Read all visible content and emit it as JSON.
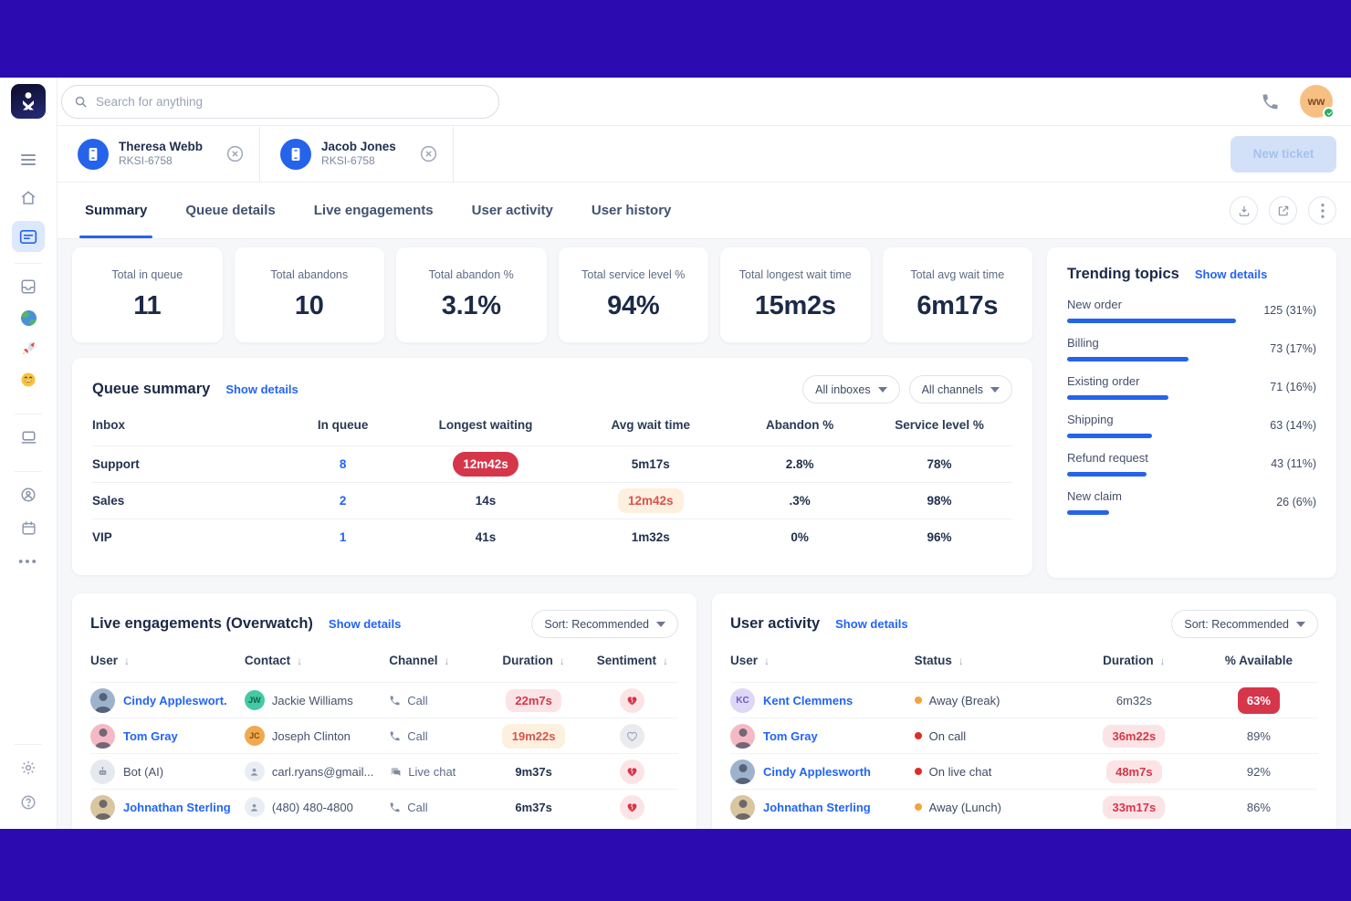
{
  "colors": {
    "frame_blue": "#2c0bb1",
    "accent_blue": "#2563eb",
    "link_blue": "#2264f6",
    "danger_red": "#d6364a",
    "danger_soft_bg": "#fbe4e6",
    "warn_soft_bg": "#fdf0df",
    "status_away_orange": "#f2a33c",
    "status_busy_red": "#e02b2b",
    "online_green": "#27ae60"
  },
  "topbar": {
    "search": {
      "placeholder": "Search for anything"
    },
    "avatar": {
      "initials": "ww",
      "status": "online"
    }
  },
  "ticketbar": {
    "tickets": [
      {
        "name": "Theresa Webb",
        "ref": "RKSI-6758"
      },
      {
        "name": "Jacob Jones",
        "ref": "RKSI-6758"
      }
    ],
    "new_ticket_label": "New ticket"
  },
  "tabs": {
    "items": [
      {
        "label": "Summary",
        "active": true
      },
      {
        "label": "Queue details",
        "active": false
      },
      {
        "label": "Live engagements",
        "active": false
      },
      {
        "label": "User activity",
        "active": false
      },
      {
        "label": "User history",
        "active": false
      }
    ],
    "action_icons": [
      "download",
      "open-external",
      "more"
    ]
  },
  "stats": [
    {
      "label": "Total in queue",
      "value": "11"
    },
    {
      "label": "Total abandons",
      "value": "10"
    },
    {
      "label": "Total abandon %",
      "value": "3.1%"
    },
    {
      "label": "Total service level %",
      "value": "94%"
    },
    {
      "label": "Total longest wait time",
      "value": "15m2s"
    },
    {
      "label": "Total avg wait time",
      "value": "6m17s"
    }
  ],
  "trending": {
    "title": "Trending topics",
    "show_details": "Show details",
    "items": [
      {
        "label": "New order",
        "value": "125 (31%)",
        "bar_pct": 100
      },
      {
        "label": "Billing",
        "value": "73 (17%)",
        "bar_pct": 72
      },
      {
        "label": "Existing order",
        "value": "71 (16%)",
        "bar_pct": 60
      },
      {
        "label": "Shipping",
        "value": "63 (14%)",
        "bar_pct": 50
      },
      {
        "label": "Refund request",
        "value": "43 (11%)",
        "bar_pct": 47
      },
      {
        "label": "New claim",
        "value": "26 (6%)",
        "bar_pct": 25
      }
    ]
  },
  "queue": {
    "title": "Queue summary",
    "show_details": "Show details",
    "filters": [
      {
        "label": "All inboxes"
      },
      {
        "label": "All channels"
      }
    ],
    "columns": [
      "Inbox",
      "In queue",
      "Longest waiting",
      "Avg wait time",
      "Abandon %",
      "Service level %"
    ],
    "rows": [
      {
        "inbox": "Support",
        "in_queue": "8",
        "longest": "12m42s",
        "avg": "5m17s",
        "abandon": "2.8%",
        "service": "78%"
      },
      {
        "inbox": "Sales",
        "in_queue": "2",
        "longest": "14s",
        "avg": "12m42s",
        "abandon": ".3%",
        "service": "98%"
      },
      {
        "inbox": "VIP",
        "in_queue": "1",
        "longest": "41s",
        "avg": "1m32s",
        "abandon": "0%",
        "service": "96%"
      }
    ]
  },
  "live": {
    "title": "Live engagements (Overwatch)",
    "show_details": "Show details",
    "sort_label": "Sort: Recommended",
    "columns": [
      "User",
      "Contact",
      "Channel",
      "Duration",
      "Sentiment"
    ],
    "rows": [
      {
        "user": "Cindy Appleswort.",
        "user_avatar_bg": "#9db3cc",
        "contact": "Jackie Williams",
        "contact_avatar": {
          "initials": "JW",
          "bg": "#45c9a5",
          "fg": "#116149"
        },
        "channel": "Call",
        "duration": "22m7s",
        "sentiment": "negative"
      },
      {
        "user": "Tom Gray",
        "user_avatar_bg": "#f3bac6",
        "contact": "Joseph Clinton",
        "contact_avatar": {
          "initials": "JC",
          "bg": "#f2a94e",
          "fg": "#7c4d0e"
        },
        "channel": "Call",
        "duration": "19m22s",
        "sentiment": "neutral"
      },
      {
        "user": "Bot (AI)",
        "user_avatar_bg": "#e5e9ef",
        "contact": "carl.ryans@gmail...",
        "contact_avatar": {
          "icon": "person"
        },
        "channel": "Live chat",
        "duration": "9m37s",
        "sentiment": "negative"
      },
      {
        "user": "Johnathan Sterling",
        "user_avatar_bg": "#d9c6a0",
        "contact": "(480) 480-4800",
        "contact_avatar": {
          "icon": "person"
        },
        "channel": "Call",
        "duration": "6m37s",
        "sentiment": "negative"
      }
    ]
  },
  "activity": {
    "title": "User activity",
    "show_details": "Show details",
    "sort_label": "Sort: Recommended",
    "columns": [
      "User",
      "Status",
      "Duration",
      "% Available"
    ],
    "rows": [
      {
        "user": "Kent Clemmens",
        "avatar": {
          "initials": "KC",
          "bg": "#ded7f5",
          "fg": "#6a5acd"
        },
        "status": "Away (Break)",
        "status_kind": "away",
        "duration": "6m32s",
        "available": "63%"
      },
      {
        "user": "Tom Gray",
        "avatar": {
          "photo_bg": "#f3bac6"
        },
        "status": "On call",
        "status_kind": "busy",
        "duration": "36m22s",
        "available": "89%"
      },
      {
        "user": "Cindy Applesworth",
        "avatar": {
          "photo_bg": "#9db3cc"
        },
        "status": "On live chat",
        "status_kind": "busy",
        "duration": "48m7s",
        "available": "92%"
      },
      {
        "user": "Johnathan Sterling",
        "avatar": {
          "photo_bg": "#d9c6a0"
        },
        "status": "Away (Lunch)",
        "status_kind": "away",
        "duration": "33m17s",
        "available": "86%"
      }
    ]
  },
  "sidebar": {
    "top_icons": [
      "menu",
      "home",
      "dashboard",
      "inbox-stack",
      "globe",
      "rocket",
      "laughing-emoji",
      "laptop",
      "contacts",
      "calendar",
      "more"
    ],
    "bottom_icons": [
      "settings",
      "help"
    ]
  }
}
